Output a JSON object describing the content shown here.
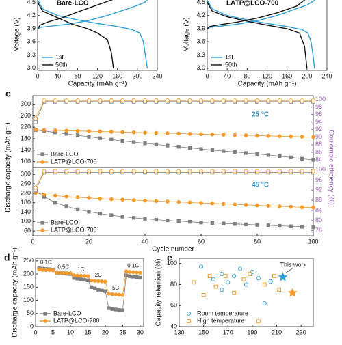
{
  "chart_data": [
    {
      "type": "line",
      "annotation": "Bare-LCO",
      "xlabel": "Capacity (mAh g⁻¹)",
      "ylabel": "Voltage (V)",
      "xlim": [
        0,
        240
      ],
      "xticks": [
        0,
        40,
        80,
        120,
        160,
        200,
        240
      ],
      "ylim": [
        2.95,
        4.6
      ],
      "yticks": [
        {
          "value": 3,
          "label": "3.0"
        },
        3.3,
        3.6,
        3.9,
        4.2,
        4.5
      ],
      "legend": "lower left",
      "series": [
        {
          "name": "1st",
          "color": "#2e9fd9",
          "x": [
            0,
            5,
            20,
            60,
            100,
            140,
            180,
            200,
            215,
            222,
            null,
            0,
            10,
            40,
            80,
            120,
            160,
            190,
            205,
            212,
            216,
            220
          ],
          "values": [
            3.9,
            3.93,
            3.95,
            4.0,
            4.08,
            4.2,
            4.35,
            4.43,
            4.5,
            4.58,
            null,
            4.55,
            4.35,
            4.2,
            4.1,
            4.02,
            3.95,
            3.88,
            3.8,
            3.6,
            3.3,
            3.0
          ]
        },
        {
          "name": "50th",
          "color": "#111111",
          "x": [
            0,
            5,
            20,
            50,
            80,
            110,
            140,
            155,
            null,
            0,
            10,
            40,
            70,
            100,
            120,
            140,
            148,
            152
          ],
          "values": [
            3.9,
            3.98,
            4.05,
            4.15,
            4.28,
            4.4,
            4.52,
            4.58,
            null,
            4.5,
            4.3,
            4.15,
            4.0,
            3.9,
            3.8,
            3.65,
            3.35,
            3.0
          ]
        }
      ]
    },
    {
      "type": "line",
      "annotation": "LATP@LCO-700",
      "xlabel": "Capacity (mAh g⁻¹)",
      "ylabel": "Voltage (V)",
      "xlim": [
        0,
        240
      ],
      "xticks": [
        0,
        40,
        80,
        120,
        160,
        200,
        240
      ],
      "ylim": [
        2.95,
        4.6
      ],
      "yticks": [
        {
          "value": 3,
          "label": "3.0"
        },
        3.3,
        3.6,
        3.9,
        4.2,
        4.5
      ],
      "legend": "lower left",
      "series": [
        {
          "name": "1st",
          "color": "#2e9fd9",
          "x": [
            0,
            5,
            20,
            60,
            100,
            140,
            180,
            200,
            212,
            218,
            null,
            0,
            10,
            40,
            80,
            120,
            160,
            190,
            202,
            208,
            212,
            215
          ],
          "values": [
            3.9,
            3.93,
            3.95,
            4.0,
            4.08,
            4.2,
            4.36,
            4.44,
            4.52,
            4.58,
            null,
            4.55,
            4.35,
            4.2,
            4.1,
            4.02,
            3.95,
            3.88,
            3.8,
            3.6,
            3.3,
            3.0
          ]
        },
        {
          "name": "50th",
          "color": "#111111",
          "x": [
            0,
            5,
            20,
            60,
            100,
            140,
            180,
            198,
            null,
            0,
            10,
            40,
            80,
            120,
            160,
            185,
            195,
            200
          ],
          "values": [
            3.9,
            3.95,
            3.98,
            4.05,
            4.14,
            4.26,
            4.42,
            4.58,
            null,
            4.5,
            4.3,
            4.17,
            4.07,
            3.98,
            3.9,
            3.8,
            3.5,
            3.0
          ]
        }
      ]
    },
    {
      "type": "line",
      "label": "c",
      "annotation": "25 °C",
      "ylabel": "Discharge capacity (mAh g⁻¹)",
      "y2label": "Coulombic efficiency (%)",
      "xlim": [
        0,
        100
      ],
      "ylim": [
        80,
        330
      ],
      "yticks": [
        100,
        140,
        180,
        220,
        260,
        300
      ],
      "y2lim": [
        82,
        101
      ],
      "y2ticks": [
        84,
        86,
        88,
        90,
        92,
        94,
        96,
        98,
        100
      ],
      "legend": "lower left",
      "x": [
        1,
        4,
        8,
        12,
        16,
        20,
        24,
        28,
        32,
        36,
        40,
        44,
        48,
        52,
        56,
        60,
        64,
        68,
        72,
        76,
        80,
        84,
        88,
        92,
        96,
        100
      ],
      "series": [
        {
          "name": "Bare-LCO",
          "color": "#7f7f7f",
          "marker": "square",
          "values": [
            210,
            207,
            202,
            197,
            192,
            187,
            182,
            177,
            172,
            168,
            164,
            160,
            156,
            152,
            148,
            144,
            140,
            137,
            134,
            130,
            127,
            123,
            119,
            115,
            110,
            106
          ]
        },
        {
          "name": "LATP@LCO-700",
          "color": "#f39a2b",
          "marker": "circle",
          "values": [
            211,
            210,
            209,
            208,
            207,
            206,
            205,
            204,
            203,
            202,
            201,
            200,
            199,
            198,
            197,
            196,
            195,
            194,
            193,
            192,
            191,
            190,
            189,
            188,
            187,
            186
          ]
        },
        {
          "axis": "y2",
          "color": "#7f7f7f",
          "marker": "square",
          "hollow": true,
          "values": [
            94,
            99.4,
            99.4,
            99.4,
            99.4,
            99.4,
            99.4,
            99.4,
            99.4,
            99.4,
            99.4,
            99.4,
            99.4,
            99.4,
            99.4,
            99.4,
            99.4,
            99.4,
            99.4,
            99.4,
            99.4,
            99.4,
            99.4,
            99.4,
            99.4,
            99.4
          ]
        },
        {
          "axis": "y2",
          "color": "#f39a2b",
          "marker": "circle",
          "hollow": true,
          "values": [
            95,
            99.7,
            99.7,
            99.7,
            99.7,
            99.7,
            99.7,
            99.7,
            99.7,
            99.7,
            99.7,
            99.7,
            99.7,
            99.7,
            99.7,
            99.7,
            99.7,
            99.7,
            99.7,
            99.7,
            99.7,
            99.7,
            99.7,
            99.7,
            99.7,
            99.7
          ]
        }
      ]
    },
    {
      "type": "line",
      "annotation": "45 °C",
      "xlabel": "Cycle number",
      "xlim": [
        0,
        100
      ],
      "xticks": [
        0,
        20,
        40,
        60,
        80,
        100
      ],
      "ylim": [
        40,
        330
      ],
      "yticks": [
        60,
        100,
        140,
        180,
        220,
        260,
        300
      ],
      "y2lim": [
        74,
        101
      ],
      "y2ticks": [
        76,
        80,
        84,
        88,
        92,
        96,
        100
      ],
      "legend": "lower left",
      "x": [
        1,
        4,
        8,
        12,
        16,
        20,
        24,
        28,
        32,
        36,
        40,
        44,
        48,
        52,
        56,
        60,
        64,
        68,
        72,
        76,
        80,
        84,
        88,
        92,
        96,
        100
      ],
      "series": [
        {
          "name": "Bare-LCO",
          "color": "#7f7f7f",
          "marker": "square",
          "values": [
            228,
            205,
            180,
            165,
            152,
            142,
            134,
            127,
            121,
            116,
            112,
            108,
            105,
            102,
            99,
            96,
            94,
            92,
            90,
            88,
            86,
            84,
            82,
            80,
            78,
            76
          ]
        },
        {
          "name": "LATP@LCO-700",
          "color": "#f39a2b",
          "marker": "circle",
          "values": [
            222,
            215,
            210,
            206,
            203,
            200,
            197,
            195,
            193,
            191,
            189,
            187,
            185,
            183,
            181,
            179,
            177,
            175,
            173,
            171,
            169,
            167,
            165,
            163,
            161,
            160
          ]
        },
        {
          "axis": "y2",
          "color": "#7f7f7f",
          "marker": "square",
          "hollow": true,
          "values": [
            92,
            99,
            99,
            99,
            99,
            99,
            99,
            99,
            99,
            99,
            99,
            99,
            99,
            99,
            99,
            99,
            99,
            99,
            99,
            99,
            99,
            99,
            99,
            99,
            99,
            99
          ]
        },
        {
          "axis": "y2",
          "color": "#f39a2b",
          "marker": "circle",
          "hollow": true,
          "values": [
            93,
            99.5,
            99.5,
            99.5,
            99.5,
            99.5,
            99.5,
            99.5,
            99.5,
            99.5,
            99.5,
            99.5,
            99.5,
            99.5,
            99.5,
            99.5,
            99.5,
            99.5,
            99.5,
            99.5,
            99.5,
            99.5,
            99.5,
            99.5,
            99.5,
            99.5
          ]
        }
      ]
    },
    {
      "type": "line",
      "label": "d",
      "ylabel": "Discharge capacity (mAh g⁻¹)",
      "xlim": [
        0,
        31
      ],
      "xticks": [
        0,
        5,
        10,
        15,
        20,
        25,
        30
      ],
      "ylim": [
        0,
        260
      ],
      "yticks": [
        0,
        50,
        100,
        150,
        200,
        250
      ],
      "legend": "lower left",
      "rate_labels": [
        "0.1C",
        "0.5C",
        "1C",
        "2C",
        "5C",
        "0.1C"
      ],
      "x": [
        1,
        2,
        3,
        4,
        5,
        6,
        7,
        8,
        9,
        10,
        11,
        12,
        13,
        14,
        15,
        16,
        17,
        18,
        19,
        20,
        21,
        22,
        23,
        24,
        25,
        26,
        27,
        28,
        29,
        30
      ],
      "series": [
        {
          "name": "Bare-LCO",
          "color": "#7f7f7f",
          "marker": "square",
          "values": [
            222,
            220,
            219,
            218,
            217,
            205,
            203,
            202,
            201,
            200,
            185,
            182,
            180,
            178,
            176,
            150,
            145,
            140,
            137,
            135,
            70,
            67,
            65,
            63,
            62,
            195,
            192,
            190,
            188,
            186
          ]
        },
        {
          "name": "LATP@LCO-700",
          "color": "#f39a2b",
          "marker": "circle",
          "values": [
            218,
            216,
            215,
            215,
            214,
            205,
            204,
            204,
            203,
            203,
            195,
            194,
            193,
            193,
            192,
            175,
            174,
            173,
            172,
            171,
            125,
            123,
            122,
            121,
            120,
            210,
            208,
            207,
            206,
            205
          ]
        }
      ]
    },
    {
      "type": "scatter",
      "label": "e",
      "ylabel": "Capacity retention (%)",
      "xlim": [
        130,
        240
      ],
      "xticks": [
        130,
        150,
        170,
        190,
        210,
        230
      ],
      "ylim": [
        40,
        105
      ],
      "yticks": [
        40,
        60,
        80,
        100
      ],
      "legend": "lower left",
      "series": [
        {
          "name": "Room temperature",
          "color": "#2e9fd9",
          "marker": "circle",
          "hollow": true,
          "x": [
            148,
            158,
            165,
            170,
            175,
            180,
            185,
            190,
            195,
            200,
            205,
            165
          ],
          "values": [
            97,
            85,
            90,
            82,
            88,
            95,
            80,
            92,
            86,
            62,
            83,
            75
          ]
        },
        {
          "name": "High temperature",
          "color": "#f39a2b",
          "marker": "square",
          "hollow": true,
          "x": [
            142,
            150,
            160,
            168,
            175,
            183,
            188,
            195,
            200,
            208,
            212,
            155
          ],
          "values": [
            82,
            70,
            78,
            88,
            72,
            85,
            90,
            45,
            80,
            88,
            75,
            88
          ]
        }
      ],
      "highlight": {
        "label": "This work",
        "points": [
          {
            "x": 215,
            "y": 87,
            "color": "#2e9fd9"
          },
          {
            "x": 223,
            "y": 72,
            "color": "#f39a2b"
          }
        ]
      }
    }
  ]
}
